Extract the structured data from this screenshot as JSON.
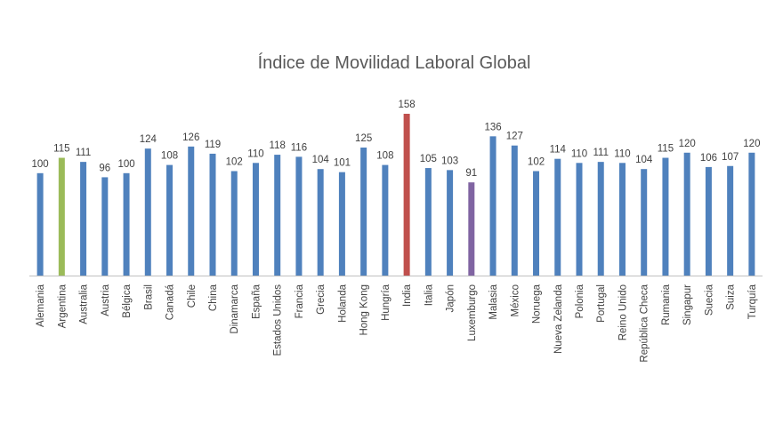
{
  "chart_data": {
    "type": "bar",
    "title": "Índice de Movilidad Laboral Global",
    "xlabel": "",
    "ylabel": "",
    "ylim": [
      0,
      160
    ],
    "grid": false,
    "legend": "none",
    "show_value_labels": true,
    "default_color": "#4f81bd",
    "axis_color": "#bfbfbf",
    "categories": [
      "Alemania",
      "Argentina",
      "Australia",
      "Austria",
      "Bélgica",
      "Brasil",
      "Canadá",
      "Chile",
      "China",
      "Dinamarca",
      "España",
      "Estados Unidos",
      "Francia",
      "Grecia",
      "Holanda",
      "Hong Kong",
      "Hungría",
      "India",
      "Italia",
      "Japón",
      "Luxemburgo",
      "Malasia",
      "México",
      "Noruega",
      "Nueva Zelanda",
      "Polonia",
      "Portugal",
      "Reino Unido",
      "República Checa",
      "Rumania",
      "Singapur",
      "Suecia",
      "Suiza",
      "Turquía"
    ],
    "values": [
      100,
      115,
      111,
      96,
      100,
      124,
      108,
      126,
      119,
      102,
      110,
      118,
      116,
      104,
      101,
      125,
      108,
      158,
      105,
      103,
      91,
      136,
      127,
      102,
      114,
      110,
      111,
      110,
      104,
      115,
      120,
      106,
      107,
      120
    ],
    "highlight_colors": {
      "Argentina": "#9bbb59",
      "India": "#c0504d",
      "Luxemburgo": "#8064a2"
    }
  }
}
